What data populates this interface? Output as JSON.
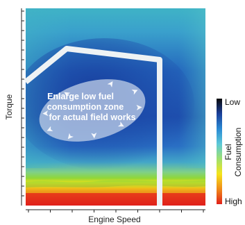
{
  "chart_data": {
    "type": "heatmap",
    "title": "",
    "xlabel": "Engine Speed",
    "ylabel": "Torque",
    "colorbar": {
      "title_lines": [
        "Fuel",
        "Consumption"
      ],
      "low_label": "Low",
      "high_label": "High",
      "colors": [
        "#0a0a0a",
        "#1a3f9a",
        "#2a8ad4",
        "#5cc8d8",
        "#9ee070",
        "#f5e41a",
        "#f08a18",
        "#e0201a"
      ]
    },
    "annotation": {
      "lines": [
        "Enlarge low fuel",
        "consumption zone",
        "for actual field works"
      ]
    },
    "grid": false,
    "legend": "right"
  }
}
